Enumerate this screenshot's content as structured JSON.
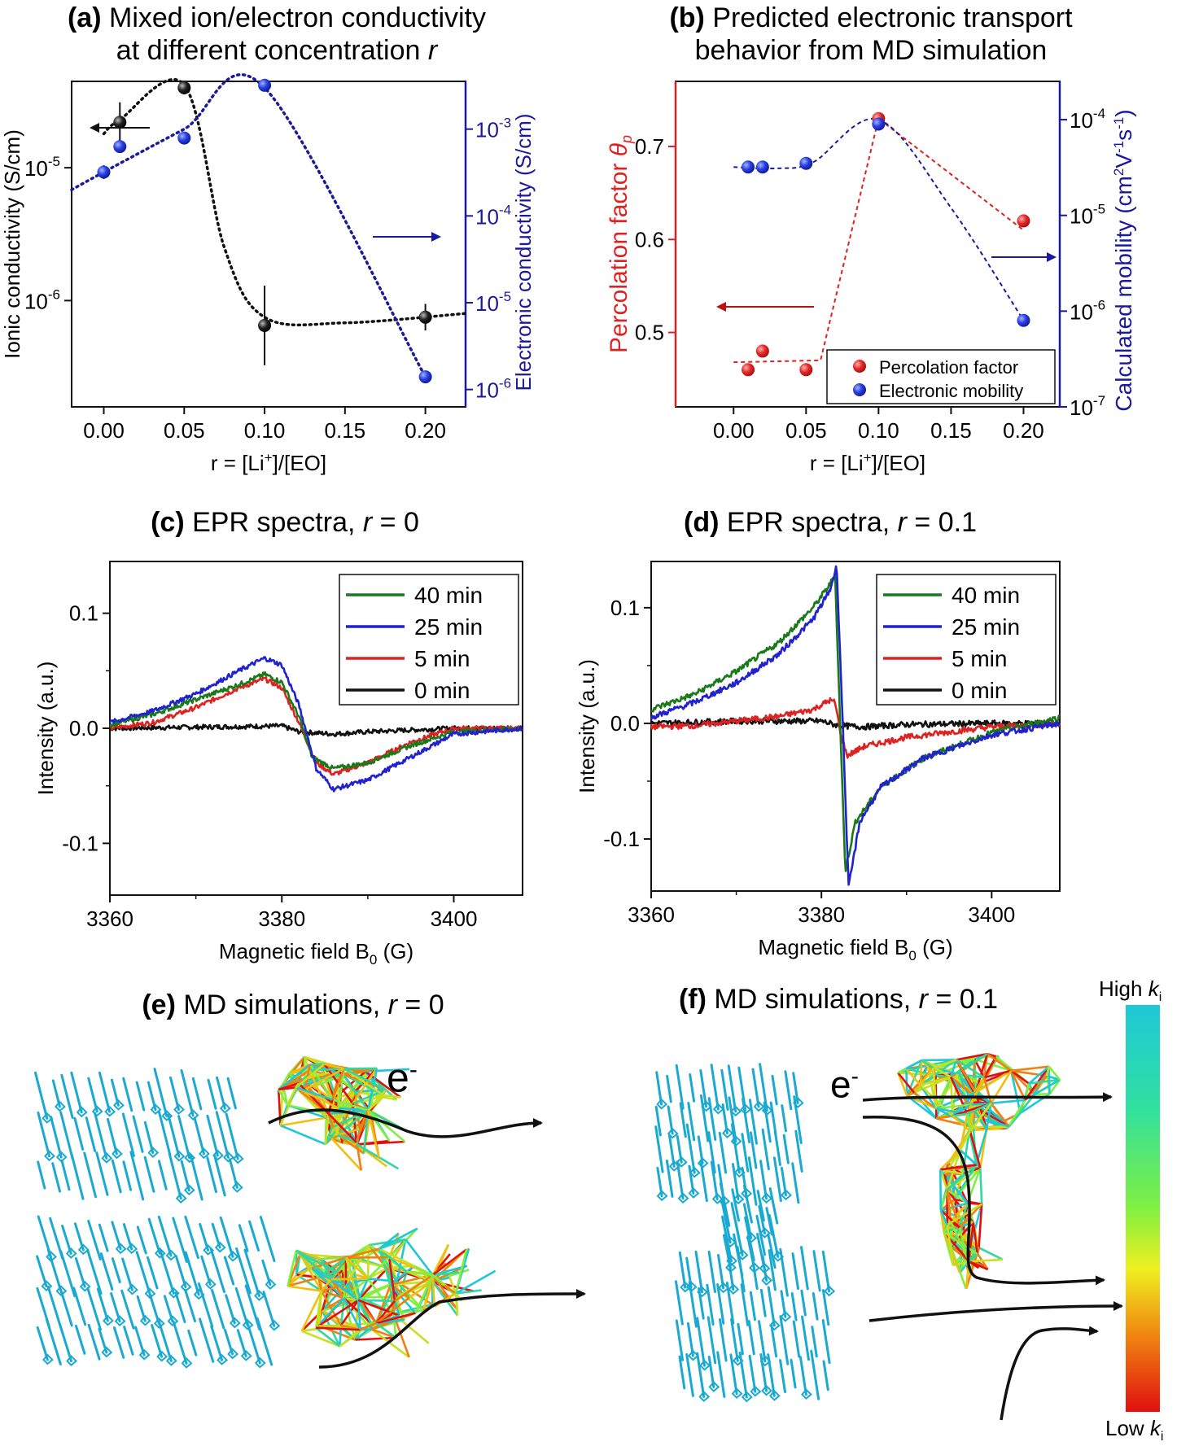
{
  "panels": {
    "a": {
      "label": "(a)",
      "title_l1": "Mixed ion/electron conductivity",
      "title_l2_pre": "at different concentration ",
      "title_l2_var": "r"
    },
    "b": {
      "label": "(b)",
      "title_l1": "Predicted electronic transport",
      "title_l2": "behavior from MD simulation"
    },
    "c": {
      "label": "(c)",
      "title_pre": "EPR spectra, ",
      "title_var": "r",
      "title_post": " = 0"
    },
    "d": {
      "label": "(d)",
      "title_pre": "EPR spectra, ",
      "title_var": "r",
      "title_post": " = 0.1"
    },
    "e": {
      "label": "(e)",
      "title_pre": "MD simulations, ",
      "title_var": "r",
      "title_post": " = 0",
      "electron": "e",
      "electron_sup": "-"
    },
    "f": {
      "label": "(f)",
      "title_pre": "MD simulations, ",
      "title_var": "r",
      "title_post": " = 0.1",
      "electron": "e",
      "electron_sup": "-"
    }
  },
  "colorbar": {
    "high_pre": "High ",
    "high_var": "k",
    "high_sub": "i",
    "low_pre": "Low ",
    "low_var": "k",
    "low_sub": "i",
    "colors": [
      "#1ec8d8",
      "#30e0a0",
      "#80f040",
      "#f0f020",
      "#f08010",
      "#e01010"
    ]
  },
  "colors": {
    "black": "#111111",
    "blue": "#2222cc",
    "red": "#dd2222",
    "navy": "#1a1a9a",
    "molecule": "#1aa9d0"
  },
  "chart_data": [
    {
      "id": "a",
      "type": "scatter",
      "xlabel": "r = [Li+]/[EO]",
      "ylabel_left": "Ionic conductivity (S/cm)",
      "ylabel_right": "Electronic conductivity (S/cm)",
      "xlim": [
        -0.02,
        0.225
      ],
      "xticks": [
        "0.00",
        "0.05",
        "0.10",
        "0.15",
        "0.20"
      ],
      "log_y_left": true,
      "ylim_left_exp": [
        -6.8,
        -4.35
      ],
      "yticks_left_exp": [
        -5,
        -6
      ],
      "log_y_right": true,
      "ylim_right_exp": [
        -6.2,
        -2.45
      ],
      "yticks_right_exp": [
        -3,
        -4,
        -5,
        -6
      ],
      "series": [
        {
          "name": "Ionic conductivity",
          "axis": "left",
          "color": "#111111",
          "x": [
            0.01,
            0.05,
            0.1,
            0.2
          ],
          "y": [
            2.2e-05,
            4e-05,
            6.5e-07,
            7.5e-07
          ],
          "err": [
            0.15,
            0.05,
            0.3,
            0.1
          ]
        },
        {
          "name": "Electronic conductivity",
          "axis": "right",
          "color": "#2222cc",
          "x": [
            0.0,
            0.01,
            0.05,
            0.1,
            0.2
          ],
          "y": [
            0.00032,
            0.00063,
            0.00079,
            0.0032,
            1.4e-06
          ],
          "err": [
            0.08,
            0,
            0,
            0,
            0
          ]
        }
      ]
    },
    {
      "id": "b",
      "type": "scatter",
      "xlabel": "r = [Li+]/[EO]",
      "ylabel_left": "Percolation factor θp",
      "ylabel_right": "Calculated mobility (cm2V-1s-1)",
      "xlim": [
        -0.04,
        0.225
      ],
      "xticks": [
        "0.00",
        "0.05",
        "0.10",
        "0.15",
        "0.20"
      ],
      "ylim_left": [
        0.42,
        0.77
      ],
      "yticks_left": [
        "0.5",
        "0.6",
        "0.7"
      ],
      "log_y_right": true,
      "ylim_right_exp": [
        -7,
        -3.6
      ],
      "yticks_right_exp": [
        -4,
        -5,
        -6,
        -7
      ],
      "legend": [
        "Percolation factor",
        "Electronic mobility"
      ],
      "legend_position": "bottom-right",
      "series": [
        {
          "name": "Percolation factor",
          "axis": "left",
          "color": "#dd2222",
          "x": [
            0.01,
            0.02,
            0.05,
            0.1,
            0.2
          ],
          "y": [
            0.46,
            0.48,
            0.46,
            0.73,
            0.62
          ]
        },
        {
          "name": "Electronic mobility",
          "axis": "right",
          "color": "#2222cc",
          "x": [
            0.01,
            0.02,
            0.05,
            0.1,
            0.2
          ],
          "y": [
            3.2e-05,
            3.2e-05,
            3.5e-05,
            9e-05,
            8e-07
          ]
        }
      ]
    },
    {
      "id": "c",
      "type": "line",
      "xlabel": "Magnetic field B0 (G)",
      "ylabel": "Intensity (a.u.)",
      "xlim": [
        3360,
        3408
      ],
      "xticks": [
        "3360",
        "3380",
        "3400"
      ],
      "ylim": [
        -0.145,
        0.145
      ],
      "yticks": [
        "0.1",
        "0.0",
        "-0.1"
      ],
      "legend": [
        "40 min",
        "25 min",
        "5 min",
        "0 min"
      ],
      "legend_position": "top-right",
      "series": [
        {
          "name": "40 min",
          "color": "#1a7a1a",
          "x": [
            3360,
            3365,
            3370,
            3375,
            3378,
            3380,
            3382,
            3383.5,
            3386,
            3390,
            3395,
            3400,
            3408
          ],
          "y": [
            0.003,
            0.012,
            0.025,
            0.038,
            0.047,
            0.04,
            0.01,
            -0.025,
            -0.035,
            -0.03,
            -0.015,
            -0.003,
            0.0
          ]
        },
        {
          "name": "25 min",
          "color": "#2222cc",
          "x": [
            3360,
            3365,
            3370,
            3375,
            3378,
            3380,
            3382,
            3384,
            3386,
            3390,
            3395,
            3400,
            3408
          ],
          "y": [
            0.005,
            0.015,
            0.03,
            0.05,
            0.061,
            0.055,
            0.02,
            -0.035,
            -0.053,
            -0.045,
            -0.025,
            -0.005,
            0.0
          ]
        },
        {
          "name": "5 min",
          "color": "#dd2222",
          "x": [
            3360,
            3365,
            3370,
            3375,
            3378,
            3380,
            3382,
            3384,
            3386,
            3390,
            3395,
            3400,
            3408
          ],
          "y": [
            0.0,
            0.005,
            0.018,
            0.035,
            0.043,
            0.035,
            0.005,
            -0.03,
            -0.04,
            -0.03,
            -0.012,
            0.0,
            0.0
          ]
        },
        {
          "name": "0 min",
          "color": "#111111",
          "x": [
            3360,
            3370,
            3380,
            3382,
            3386,
            3390,
            3400,
            3408
          ],
          "y": [
            0.0,
            0.001,
            0.002,
            -0.003,
            -0.005,
            -0.003,
            0.0,
            0.0
          ]
        }
      ]
    },
    {
      "id": "d",
      "type": "line",
      "xlabel": "Magnetic field B0 (G)",
      "ylabel": "Intensity (a.u.)",
      "xlim": [
        3360,
        3408
      ],
      "xticks": [
        "3360",
        "3380",
        "3400"
      ],
      "ylim": [
        -0.145,
        0.14
      ],
      "yticks": [
        "0.1",
        "0.0",
        "-0.1"
      ],
      "legend": [
        "40 min",
        "25 min",
        "5 min",
        "0 min"
      ],
      "legend_position": "top-right",
      "series": [
        {
          "name": "40 min",
          "color": "#1a7a1a",
          "x": [
            3360,
            3365,
            3370,
            3375,
            3379,
            3381,
            3381.6,
            3382.2,
            3382.8,
            3384,
            3387,
            3392,
            3400,
            3408
          ],
          "y": [
            0.012,
            0.025,
            0.045,
            0.07,
            0.1,
            0.12,
            0.13,
            0.0,
            -0.128,
            -0.085,
            -0.055,
            -0.03,
            -0.008,
            0.005
          ]
        },
        {
          "name": "25 min",
          "color": "#2222cc",
          "x": [
            3360,
            3365,
            3370,
            3375,
            3379,
            3381,
            3381.8,
            3382.5,
            3383.2,
            3384.5,
            3387,
            3392,
            3400,
            3408
          ],
          "y": [
            0.005,
            0.018,
            0.035,
            0.06,
            0.09,
            0.115,
            0.136,
            0.0,
            -0.142,
            -0.085,
            -0.055,
            -0.03,
            -0.01,
            0.0
          ]
        },
        {
          "name": "5 min",
          "color": "#dd2222",
          "x": [
            3360,
            3365,
            3370,
            3375,
            3379,
            3381,
            3381.6,
            3382.3,
            3383,
            3385,
            3390,
            3400,
            3408
          ],
          "y": [
            -0.003,
            -0.002,
            0.002,
            0.006,
            0.012,
            0.02,
            0.018,
            -0.01,
            -0.028,
            -0.02,
            -0.012,
            -0.003,
            0.0
          ]
        },
        {
          "name": "0 min",
          "color": "#111111",
          "x": [
            3360,
            3370,
            3380,
            3382,
            3385,
            3390,
            3400,
            3408
          ],
          "y": [
            0.0,
            0.002,
            0.002,
            -0.002,
            -0.003,
            -0.001,
            0.0,
            0.0
          ]
        }
      ]
    }
  ]
}
